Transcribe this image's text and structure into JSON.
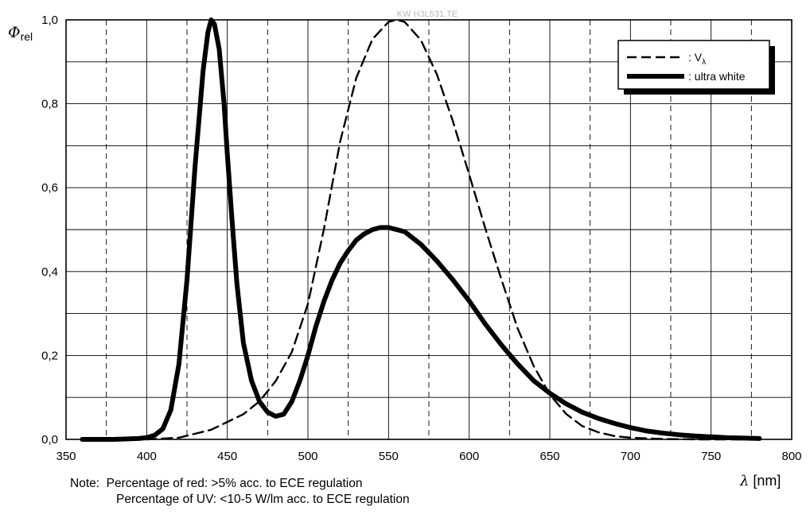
{
  "chart_data": {
    "type": "line",
    "watermark": "KW H3L531.TE",
    "ylabel_symbol": "Φ",
    "ylabel_sub": "rel",
    "xlabel_symbol": "λ",
    "xlabel_unit": "[nm]",
    "xlim": [
      350,
      800
    ],
    "ylim": [
      0,
      1.0
    ],
    "x_ticks": [
      350,
      400,
      450,
      500,
      550,
      600,
      650,
      700,
      750,
      800
    ],
    "x_tick_labels": [
      "350",
      "400",
      "450",
      "500",
      "550",
      "600",
      "650",
      "700",
      "750",
      "800"
    ],
    "y_ticks": [
      0,
      0.2,
      0.4,
      0.6,
      0.8,
      1.0
    ],
    "y_tick_labels": [
      "0,0",
      "0,2",
      "0,4",
      "0,6",
      "0,8",
      "1,0"
    ],
    "grid": true,
    "legend_position": "top-right",
    "legend": [
      {
        "label_main": ": V",
        "label_sub": "λ",
        "style": "dashed"
      },
      {
        "label_main": ": ultra white",
        "label_sub": "",
        "style": "solid-thick"
      }
    ],
    "series": [
      {
        "style": "dashed",
        "x": [
          360,
          400,
          420,
          440,
          460,
          470,
          480,
          490,
          500,
          510,
          520,
          530,
          540,
          550,
          555,
          560,
          570,
          580,
          590,
          600,
          610,
          620,
          630,
          640,
          650,
          660,
          670,
          680,
          690,
          700,
          720,
          740,
          760,
          780
        ],
        "y": [
          0.0,
          0.0,
          0.004,
          0.023,
          0.06,
          0.091,
          0.139,
          0.208,
          0.323,
          0.503,
          0.71,
          0.862,
          0.954,
          0.995,
          1.0,
          0.995,
          0.952,
          0.87,
          0.757,
          0.631,
          0.503,
          0.381,
          0.265,
          0.175,
          0.107,
          0.061,
          0.032,
          0.017,
          0.008,
          0.004,
          0.001,
          0.0,
          0.0,
          0.0
        ]
      },
      {
        "style": "solid-thick",
        "x": [
          360,
          380,
          395,
          400,
          405,
          410,
          415,
          420,
          425,
          430,
          435,
          438,
          440,
          442,
          445,
          448,
          450,
          453,
          456,
          460,
          465,
          470,
          475,
          480,
          485,
          490,
          495,
          500,
          505,
          510,
          515,
          520,
          525,
          530,
          535,
          540,
          545,
          550,
          560,
          570,
          580,
          590,
          600,
          610,
          620,
          630,
          640,
          650,
          660,
          670,
          680,
          690,
          700,
          710,
          720,
          730,
          740,
          750,
          760,
          770,
          780
        ],
        "y": [
          0.0,
          0.0,
          0.002,
          0.004,
          0.01,
          0.025,
          0.07,
          0.18,
          0.38,
          0.65,
          0.88,
          0.97,
          1.0,
          0.99,
          0.93,
          0.8,
          0.68,
          0.52,
          0.37,
          0.23,
          0.14,
          0.09,
          0.065,
          0.055,
          0.06,
          0.09,
          0.14,
          0.2,
          0.27,
          0.33,
          0.38,
          0.42,
          0.45,
          0.475,
          0.49,
          0.5,
          0.505,
          0.505,
          0.495,
          0.465,
          0.425,
          0.38,
          0.33,
          0.275,
          0.225,
          0.18,
          0.14,
          0.11,
          0.085,
          0.065,
          0.05,
          0.038,
          0.028,
          0.02,
          0.015,
          0.011,
          0.008,
          0.006,
          0.004,
          0.003,
          0.002
        ]
      }
    ]
  },
  "notes": {
    "line1": "Note:  Percentage of red: >5% acc. to ECE regulation",
    "line2": "Percentage of UV: <10-5 W/lm acc. to ECE regulation"
  }
}
